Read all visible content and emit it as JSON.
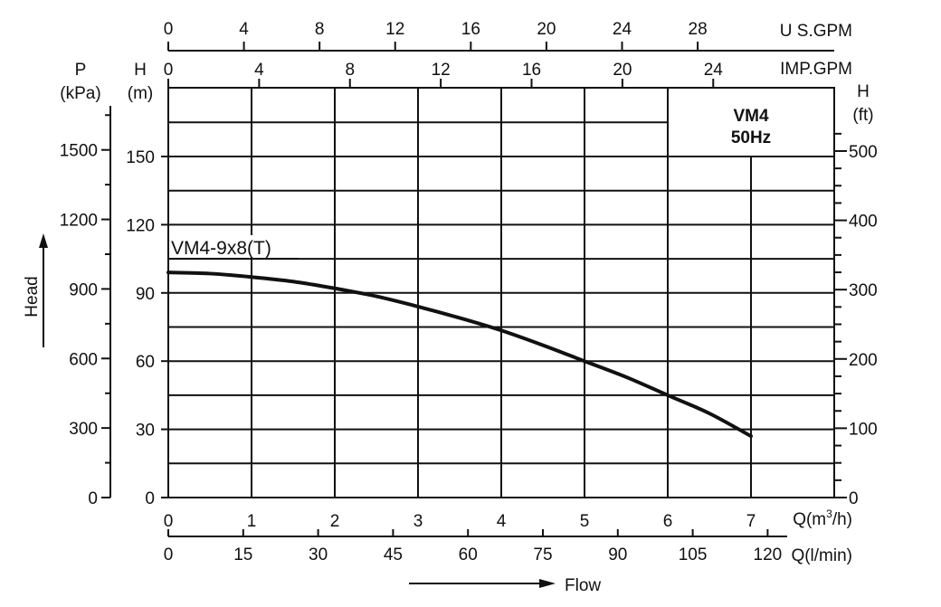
{
  "chart_data": {
    "type": "line",
    "model_title": "VM4",
    "model_frequency": "50Hz",
    "curve_label": "VM4-9x8(T)",
    "x_axis": {
      "unit_label": "Q(m³/h)",
      "unit_main": "Q(m",
      "unit_sup": "3",
      "unit_tail": "/h)",
      "range": [
        0,
        7
      ],
      "ticks": [
        "0",
        "1",
        "2",
        "3",
        "4",
        "5",
        "6",
        "7"
      ],
      "flow_label": "Flow"
    },
    "lpm_axis": {
      "unit_label": "Q(l/min)",
      "ticks": [
        "0",
        "15",
        "30",
        "45",
        "60",
        "75",
        "90",
        "105",
        "120"
      ],
      "values": [
        0,
        15,
        30,
        45,
        60,
        75,
        90,
        105,
        120
      ]
    },
    "us_gpm_axis": {
      "unit_label": "U S.GPM",
      "ticks": [
        "0",
        "4",
        "8",
        "12",
        "16",
        "20",
        "24",
        "28"
      ],
      "values": [
        0,
        4,
        8,
        12,
        16,
        20,
        24,
        28
      ]
    },
    "imp_gpm_axis": {
      "unit_label": "IMP.GPM",
      "ticks": [
        "0",
        "4",
        "8",
        "12",
        "16",
        "20",
        "24"
      ],
      "values": [
        0,
        4,
        8,
        12,
        16,
        20,
        24
      ]
    },
    "head_m_axis": {
      "symbol": "H",
      "unit": "(m)",
      "range": [
        0,
        165
      ],
      "ticks": [
        "0",
        "30",
        "60",
        "90",
        "120",
        "150"
      ],
      "values": [
        0,
        30,
        60,
        90,
        120,
        150
      ]
    },
    "pressure_kpa_axis": {
      "symbol": "P",
      "unit": "(kPa)",
      "ticks": [
        "0",
        "300",
        "600",
        "900",
        "1200",
        "1500"
      ],
      "values": [
        0,
        300,
        600,
        900,
        1200,
        1500
      ]
    },
    "head_ft_axis": {
      "symbol": "H",
      "unit": "(ft)",
      "ticks": [
        "0",
        "100",
        "200",
        "300",
        "400",
        "500"
      ],
      "values": [
        0,
        100,
        200,
        300,
        400,
        500
      ]
    },
    "y_title": "Head",
    "grid": true,
    "series": [
      {
        "x": [
          0,
          0.5,
          1,
          1.5,
          2,
          2.5,
          3,
          3.5,
          4,
          4.5,
          5,
          5.5,
          6,
          6.5,
          7
        ],
        "y": [
          99,
          98.5,
          97,
          95,
          92,
          88.5,
          84,
          79,
          73.5,
          67,
          60,
          53,
          45,
          37,
          27
        ]
      }
    ]
  }
}
